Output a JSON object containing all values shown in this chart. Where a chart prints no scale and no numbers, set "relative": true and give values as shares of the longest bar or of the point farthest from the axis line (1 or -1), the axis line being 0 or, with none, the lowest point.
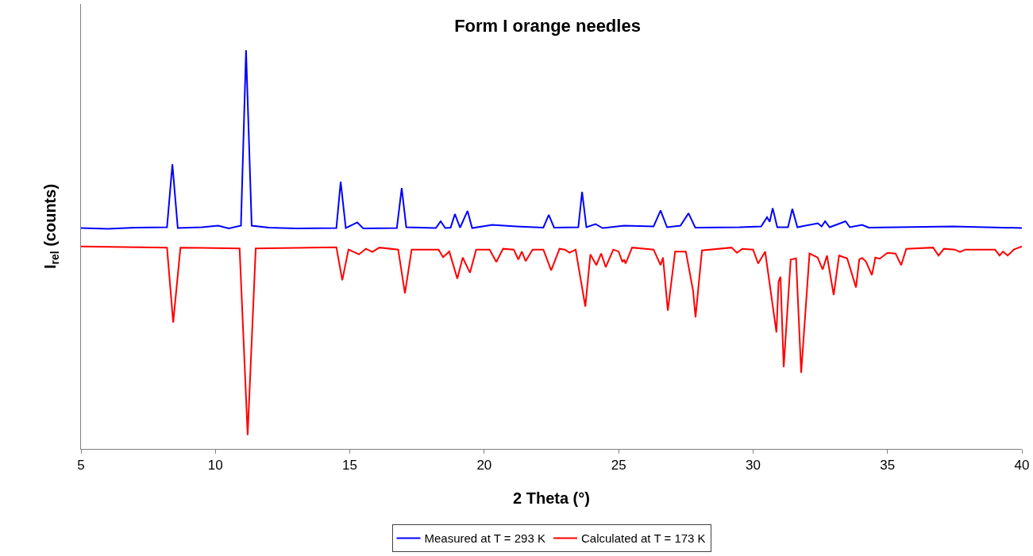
{
  "chart_data": {
    "type": "line",
    "title": "Form I orange needles",
    "xlabel": "2 Theta (°)",
    "ylabel": "I$_{rel}$ (counts)",
    "xlim": [
      5,
      40
    ],
    "xticks": [
      5,
      10,
      15,
      20,
      25,
      30,
      35,
      40
    ],
    "relative": true,
    "tick_labels": "x",
    "legend": "bottom",
    "marker": "none",
    "line_style": "solid",
    "series": [
      {
        "name": "Measured at T = 293 K",
        "color": "#0000ff",
        "x": [
          5,
          6,
          7,
          8.2,
          8.4,
          8.6,
          9.5,
          10.1,
          10.5,
          10.95,
          11.14,
          11.35,
          12,
          13,
          14.5,
          14.66,
          14.85,
          15.28,
          15.5,
          16.75,
          16.93,
          17.1,
          18.2,
          18.38,
          18.55,
          18.75,
          18.91,
          19.1,
          19.38,
          19.55,
          20.3,
          21.2,
          22.2,
          22.4,
          22.6,
          23.5,
          23.64,
          23.8,
          24.14,
          24.4,
          25.2,
          26.3,
          26.56,
          26.8,
          27.3,
          27.6,
          27.85,
          29.5,
          30.3,
          30.52,
          30.62,
          30.73,
          30.9,
          31.3,
          31.46,
          31.65,
          32.41,
          32.55,
          32.68,
          32.85,
          33.44,
          33.6,
          34.06,
          34.3,
          37.43,
          40
        ],
        "values": [
          0.554,
          0.552,
          0.555,
          0.556,
          0.714,
          0.554,
          0.556,
          0.56,
          0.553,
          0.56,
          1.0,
          0.56,
          0.555,
          0.553,
          0.554,
          0.67,
          0.554,
          0.568,
          0.553,
          0.554,
          0.654,
          0.556,
          0.554,
          0.571,
          0.554,
          0.555,
          0.589,
          0.555,
          0.597,
          0.554,
          0.562,
          0.558,
          0.555,
          0.587,
          0.555,
          0.556,
          0.645,
          0.556,
          0.564,
          0.554,
          0.56,
          0.558,
          0.598,
          0.556,
          0.56,
          0.591,
          0.555,
          0.556,
          0.558,
          0.581,
          0.57,
          0.604,
          0.556,
          0.556,
          0.602,
          0.556,
          0.566,
          0.558,
          0.571,
          0.556,
          0.571,
          0.556,
          0.562,
          0.555,
          0.558,
          0.554
        ]
      },
      {
        "name": "Calculated at T = 173 K",
        "color": "#ff0000",
        "x": [
          5,
          8.2,
          8.43,
          8.7,
          10.9,
          11.2,
          11.5,
          14.5,
          14.72,
          14.95,
          15.34,
          15.6,
          15.84,
          16.1,
          16.8,
          17.05,
          17.3,
          18.3,
          18.47,
          18.7,
          19.0,
          19.2,
          19.47,
          19.7,
          20.2,
          20.45,
          20.7,
          21.1,
          21.27,
          21.4,
          21.54,
          21.8,
          22.2,
          22.49,
          22.8,
          23.0,
          23.17,
          23.4,
          23.76,
          23.95,
          24.17,
          24.35,
          24.52,
          24.8,
          25.0,
          25.14,
          25.2,
          25.26,
          25.5,
          26.3,
          26.56,
          26.65,
          26.83,
          27.1,
          27.5,
          27.77,
          27.86,
          28.1,
          29.2,
          29.4,
          29.6,
          30.0,
          30.19,
          30.45,
          30.87,
          30.95,
          31.02,
          31.14,
          31.4,
          31.6,
          31.79,
          32.1,
          32.4,
          32.59,
          32.75,
          33.0,
          33.2,
          33.5,
          33.83,
          33.95,
          34.06,
          34.2,
          34.42,
          34.55,
          34.71,
          35.0,
          35.3,
          35.51,
          35.7,
          36.7,
          36.9,
          37.1,
          37.5,
          37.7,
          37.9,
          39.0,
          39.17,
          39.3,
          39.47,
          39.7,
          40
        ],
        "values": [
          0.508,
          0.505,
          0.317,
          0.505,
          0.503,
          0.035,
          0.503,
          0.506,
          0.423,
          0.5,
          0.488,
          0.502,
          0.494,
          0.505,
          0.5,
          0.39,
          0.5,
          0.5,
          0.481,
          0.495,
          0.427,
          0.48,
          0.442,
          0.5,
          0.5,
          0.469,
          0.502,
          0.5,
          0.475,
          0.495,
          0.471,
          0.5,
          0.5,
          0.448,
          0.502,
          0.5,
          0.492,
          0.5,
          0.357,
          0.488,
          0.461,
          0.49,
          0.456,
          0.5,
          0.495,
          0.469,
          0.475,
          0.465,
          0.505,
          0.5,
          0.461,
          0.48,
          0.347,
          0.495,
          0.495,
          0.396,
          0.33,
          0.498,
          0.505,
          0.492,
          0.502,
          0.5,
          0.465,
          0.495,
          0.292,
          0.42,
          0.432,
          0.205,
          0.475,
          0.478,
          0.191,
          0.49,
          0.48,
          0.45,
          0.485,
          0.386,
          0.485,
          0.478,
          0.405,
          0.475,
          0.479,
          0.47,
          0.436,
          0.48,
          0.477,
          0.492,
          0.49,
          0.461,
          0.502,
          0.505,
          0.485,
          0.502,
          0.5,
          0.494,
          0.5,
          0.5,
          0.485,
          0.495,
          0.485,
          0.5,
          0.508
        ]
      }
    ]
  }
}
